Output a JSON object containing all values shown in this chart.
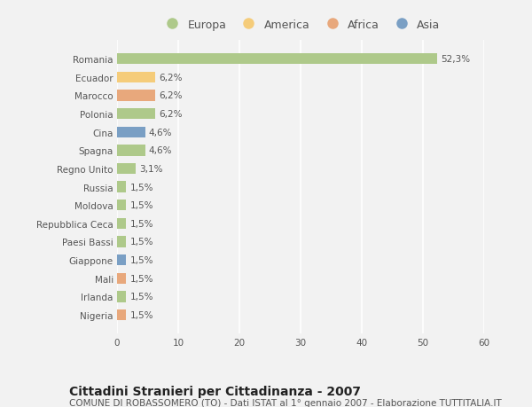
{
  "categories": [
    "Romania",
    "Ecuador",
    "Marocco",
    "Polonia",
    "Cina",
    "Spagna",
    "Regno Unito",
    "Russia",
    "Moldova",
    "Repubblica Ceca",
    "Paesi Bassi",
    "Giappone",
    "Mali",
    "Irlanda",
    "Nigeria"
  ],
  "values": [
    52.3,
    6.2,
    6.2,
    6.2,
    4.6,
    4.6,
    3.1,
    1.5,
    1.5,
    1.5,
    1.5,
    1.5,
    1.5,
    1.5,
    1.5
  ],
  "labels": [
    "52,3%",
    "6,2%",
    "6,2%",
    "6,2%",
    "4,6%",
    "4,6%",
    "3,1%",
    "1,5%",
    "1,5%",
    "1,5%",
    "1,5%",
    "1,5%",
    "1,5%",
    "1,5%",
    "1,5%"
  ],
  "continents": [
    "Europa",
    "America",
    "Africa",
    "Europa",
    "Asia",
    "Europa",
    "Europa",
    "Europa",
    "Europa",
    "Europa",
    "Europa",
    "Asia",
    "Africa",
    "Europa",
    "Africa"
  ],
  "colors": {
    "Europa": "#aec98a",
    "America": "#f5cc7a",
    "Africa": "#e8a87c",
    "Asia": "#7a9fc4"
  },
  "xlim": [
    0,
    60
  ],
  "xticks": [
    0,
    10,
    20,
    30,
    40,
    50,
    60
  ],
  "title": "Cittadini Stranieri per Cittadinanza - 2007",
  "subtitle": "COMUNE DI ROBASSOMERO (TO) - Dati ISTAT al 1° gennaio 2007 - Elaborazione TUTTITALIA.IT",
  "background_color": "#f2f2f2",
  "plot_bg_color": "#f2f2f2",
  "bar_height": 0.6,
  "grid_color": "#ffffff",
  "label_fontsize": 7.5,
  "tick_fontsize": 7.5,
  "title_fontsize": 10,
  "subtitle_fontsize": 7.5,
  "legend_order": [
    "Europa",
    "America",
    "Africa",
    "Asia"
  ]
}
